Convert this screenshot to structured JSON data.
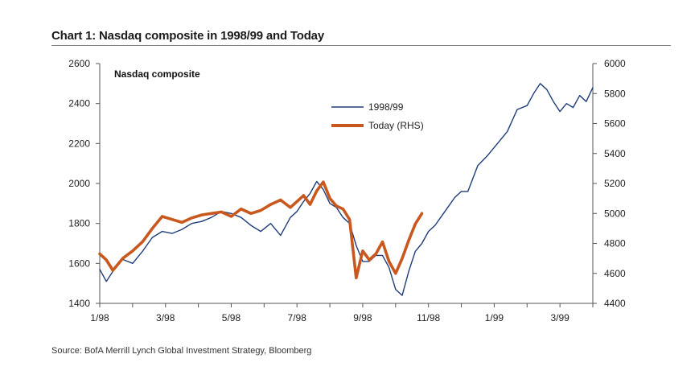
{
  "chart_data": {
    "type": "line",
    "title": "Chart 1: Nasdaq composite in 1998/99 and Today",
    "inner_title": "Nasdaq composite",
    "source": "Source:  BofA Merrill Lynch Global Investment Strategy, Bloomberg",
    "x_tick_labels": [
      "1/98",
      "3/98",
      "5/98",
      "7/98",
      "9/98",
      "11/98",
      "1/99",
      "3/99"
    ],
    "y_left": {
      "min": 1400,
      "max": 2600,
      "ticks": [
        "1400",
        "1600",
        "1800",
        "2000",
        "2200",
        "2400",
        "2600"
      ]
    },
    "y_right": {
      "min": 4400,
      "max": 6000,
      "ticks": [
        "4400",
        "4600",
        "4800",
        "5000",
        "5200",
        "5400",
        "5600",
        "5800",
        "6000"
      ]
    },
    "grid": false,
    "legend_position": "top-center",
    "series": [
      {
        "name": "1998/99",
        "axis": "left",
        "color": "#1f3c7a",
        "x": [
          0.0,
          0.2,
          0.4,
          0.7,
          1.0,
          1.3,
          1.6,
          1.9,
          2.2,
          2.5,
          2.8,
          3.1,
          3.4,
          3.7,
          4.0,
          4.3,
          4.6,
          4.9,
          5.2,
          5.5,
          5.8,
          6.0,
          6.2,
          6.4,
          6.6,
          6.8,
          7.0,
          7.2,
          7.4,
          7.6,
          7.8,
          8.0,
          8.2,
          8.4,
          8.6,
          8.8,
          9.0,
          9.2,
          9.4,
          9.6,
          9.8,
          10.0,
          10.2,
          10.5,
          10.8,
          11.0,
          11.2,
          11.5,
          11.8,
          12.1,
          12.4,
          12.7,
          13.0,
          13.2,
          13.4,
          13.6,
          13.8,
          14.0,
          14.2,
          14.4,
          14.6,
          14.8,
          15.0
        ],
        "values": [
          1570,
          1510,
          1560,
          1620,
          1600,
          1660,
          1730,
          1760,
          1750,
          1770,
          1800,
          1810,
          1830,
          1860,
          1850,
          1830,
          1790,
          1760,
          1800,
          1740,
          1830,
          1860,
          1910,
          1950,
          2010,
          1970,
          1900,
          1880,
          1830,
          1800,
          1690,
          1610,
          1610,
          1640,
          1640,
          1580,
          1470,
          1440,
          1560,
          1660,
          1700,
          1760,
          1790,
          1860,
          1930,
          1960,
          1960,
          2090,
          2140,
          2200,
          2260,
          2370,
          2390,
          2450,
          2500,
          2470,
          2410,
          2360,
          2400,
          2380,
          2440,
          2410,
          2480
        ]
      },
      {
        "name": "Today (RHS)",
        "axis": "right",
        "color": "#c8581e",
        "x": [
          0.0,
          0.2,
          0.4,
          0.7,
          1.0,
          1.3,
          1.6,
          1.9,
          2.2,
          2.5,
          2.8,
          3.1,
          3.4,
          3.7,
          4.0,
          4.3,
          4.6,
          4.9,
          5.2,
          5.5,
          5.8,
          6.0,
          6.2,
          6.4,
          6.6,
          6.8,
          7.0,
          7.2,
          7.4,
          7.6,
          7.8,
          8.0,
          8.2,
          8.4,
          8.6,
          8.8,
          9.0,
          9.2,
          9.4,
          9.6,
          9.8
        ],
        "values": [
          4730,
          4690,
          4620,
          4700,
          4750,
          4810,
          4900,
          4980,
          4960,
          4940,
          4970,
          4990,
          5000,
          5010,
          4980,
          5030,
          5000,
          5020,
          5060,
          5090,
          5040,
          5080,
          5120,
          5060,
          5150,
          5210,
          5100,
          5050,
          5030,
          4960,
          4570,
          4750,
          4690,
          4730,
          4810,
          4680,
          4600,
          4700,
          4820,
          4930,
          5000
        ]
      }
    ]
  }
}
